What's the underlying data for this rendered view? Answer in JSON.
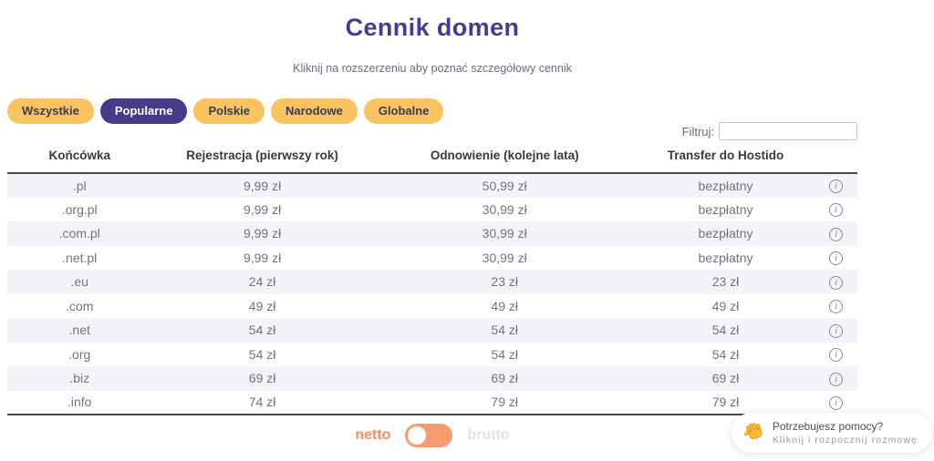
{
  "page": {
    "title": "Cennik domen",
    "subtitle": "Kliknij na rozszerzeniu aby poznać szczegółowy cennik"
  },
  "tabs": [
    {
      "label": "Wszystkie",
      "active": false
    },
    {
      "label": "Popularne",
      "active": true
    },
    {
      "label": "Polskie",
      "active": false
    },
    {
      "label": "Narodowe",
      "active": false
    },
    {
      "label": "Globalne",
      "active": false
    }
  ],
  "filter": {
    "label": "Filtruj:",
    "value": ""
  },
  "table": {
    "headers": {
      "ext": "Końcówka",
      "registration": "Rejestracja (pierwszy rok)",
      "renewal": "Odnowienie (kolejne lata)",
      "transfer": "Transfer do Hostido"
    },
    "info_icon_glyph": "i",
    "rows": [
      {
        "ext": ".pl",
        "registration": "9,99 zł",
        "renewal": "50,99 zł",
        "transfer": "bezpłatny"
      },
      {
        "ext": ".org.pl",
        "registration": "9,99 zł",
        "renewal": "30,99 zł",
        "transfer": "bezpłatny"
      },
      {
        "ext": ".com.pl",
        "registration": "9,99 zł",
        "renewal": "30,99 zł",
        "transfer": "bezpłatny"
      },
      {
        "ext": ".net.pl",
        "registration": "9,99 zł",
        "renewal": "30,99 zł",
        "transfer": "bezpłatny"
      },
      {
        "ext": ".eu",
        "registration": "24 zł",
        "renewal": "23 zł",
        "transfer": "23 zł"
      },
      {
        "ext": ".com",
        "registration": "49 zł",
        "renewal": "49 zł",
        "transfer": "49 zł"
      },
      {
        "ext": ".net",
        "registration": "54 zł",
        "renewal": "54 zł",
        "transfer": "54 zł"
      },
      {
        "ext": ".org",
        "registration": "54 zł",
        "renewal": "54 zł",
        "transfer": "54 zł"
      },
      {
        "ext": ".biz",
        "registration": "69 zł",
        "renewal": "69 zł",
        "transfer": "69 zł"
      },
      {
        "ext": ".info",
        "registration": "74 zł",
        "renewal": "79 zł",
        "transfer": "79 zł"
      }
    ]
  },
  "toggle": {
    "left_label": "netto",
    "right_label": "brutto",
    "selected": "netto"
  },
  "chat": {
    "line1": "Potrzebujesz pomocy?",
    "line2": "Kliknij i rozpocznij rozmowę",
    "icon": "waving-hand-icon"
  },
  "colors": {
    "brand_purple": "#463A8B",
    "accent_yellow": "#F8C361",
    "accent_orange": "#F79B70",
    "row_alt_bg": "#F4F4F8",
    "dark_border": "#47474D"
  }
}
